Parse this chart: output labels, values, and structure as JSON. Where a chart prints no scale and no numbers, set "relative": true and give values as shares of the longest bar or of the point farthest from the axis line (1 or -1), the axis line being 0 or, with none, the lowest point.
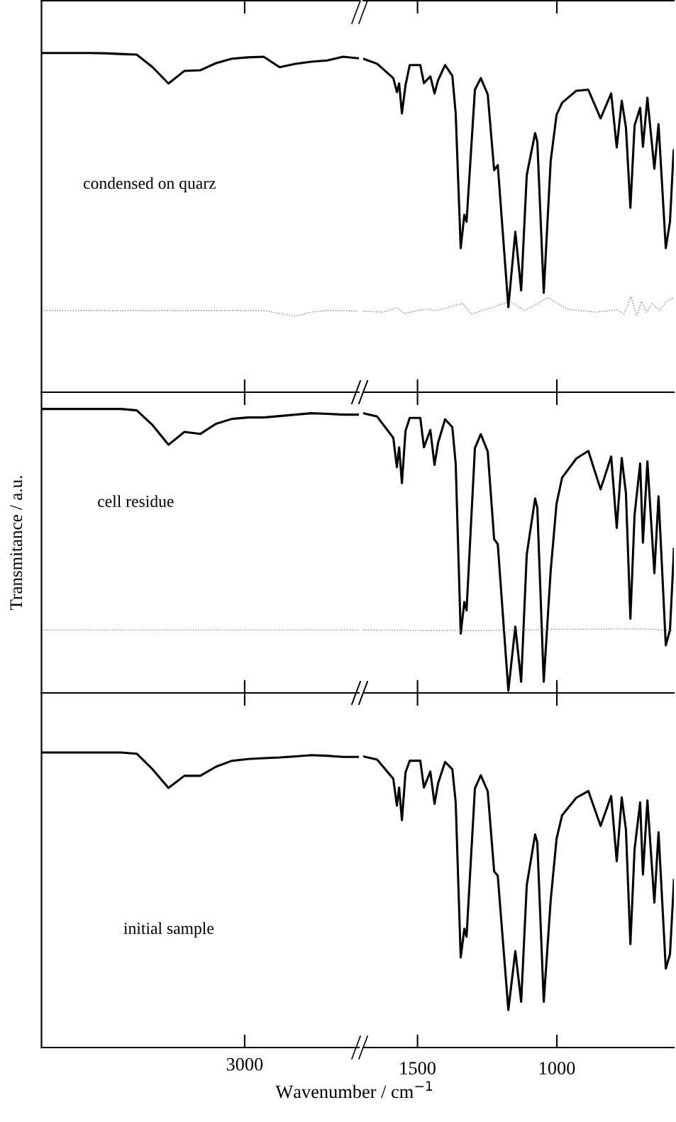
{
  "chart_data": [
    {
      "type": "line",
      "relative": true,
      "categories": [
        null,
        null,
        null,
        null,
        null,
        null,
        null,
        null,
        null,
        null,
        null,
        null,
        null,
        null,
        null,
        null,
        null,
        null,
        null,
        null,
        null
      ],
      "tick_labels": false,
      "annotations": [
        "condensed on quarz"
      ],
      "series": [
        {
          "color": "#000000",
          "line_style": "solid",
          "values": [
            1,
            1,
            1,
            1,
            0.999,
            0.997,
            0.995,
            0.958,
            0.91,
            0.947,
            0.949,
            0.97,
            0.983,
            0.987,
            0.989,
            0.958,
            0.968,
            0.974,
            0.978,
            0.989,
            0.984
          ]
        },
        {
          "color": "#808080",
          "line_style": "dotted",
          "values": [
            0.241,
            0.241,
            0.241,
            0.241,
            0.241,
            0.241,
            0.241,
            0.241,
            0.241,
            0.241,
            0.241,
            0.241,
            0.241,
            0.241,
            0.241,
            0.232,
            0.224,
            0.236,
            0.241,
            0.241,
            0.238
          ]
        }
      ]
    },
    {
      "type": "line",
      "relative": true,
      "xlim": [
        1695,
        580
      ],
      "xticks": [
        1500,
        1000
      ],
      "tick_labels": false,
      "series": [
        {
          "color": "#000000",
          "line_style": "solid",
          "x": [
            1695,
            1645,
            1587,
            1574,
            1566,
            1556,
            1543,
            1528,
            1490,
            1477,
            1454,
            1439,
            1426,
            1401,
            1375,
            1363,
            1345,
            1332,
            1324,
            1294,
            1273,
            1248,
            1225,
            1212,
            1174,
            1149,
            1128,
            1108,
            1078,
            1070,
            1047,
            1022,
            1001,
            981,
            930,
            887,
            843,
            805,
            785,
            767,
            752,
            736,
            721,
            701,
            691,
            675,
            650,
            635,
            609,
            594,
            581,
            580
          ],
          "values": [
            1.0,
            0.985,
            0.942,
            0.9,
            0.926,
            0.836,
            0.921,
            0.981,
            0.981,
            0.927,
            0.947,
            0.896,
            0.936,
            0.981,
            0.949,
            0.836,
            0.432,
            0.532,
            0.511,
            0.907,
            0.942,
            0.893,
            0.666,
            0.681,
            0.255,
            0.481,
            0.305,
            0.651,
            0.777,
            0.751,
            0.298,
            0.694,
            0.832,
            0.868,
            0.904,
            0.907,
            0.821,
            0.896,
            0.734,
            0.874,
            0.794,
            0.553,
            0.8,
            0.853,
            0.736,
            0.883,
            0.67,
            0.804,
            0.432,
            0.511,
            0.723,
            0.726
          ]
        },
        {
          "color": "#808080",
          "line_style": "dotted",
          "x": [
            1695,
            1625,
            1574,
            1548,
            1497,
            1472,
            1434,
            1337,
            1307,
            1167,
            1116,
            1032,
            963,
            861,
            785,
            759,
            734,
            714,
            696,
            678,
            658,
            632,
            607,
            580
          ],
          "values": [
            0.243,
            0.24,
            0.253,
            0.236,
            0.245,
            0.249,
            0.245,
            0.266,
            0.234,
            0.272,
            0.245,
            0.283,
            0.249,
            0.24,
            0.247,
            0.234,
            0.287,
            0.23,
            0.272,
            0.24,
            0.266,
            0.245,
            0.272,
            0.283
          ]
        }
      ]
    },
    {
      "type": "line",
      "relative": true,
      "categories": [
        null,
        null,
        null,
        null,
        null,
        null,
        null,
        null,
        null,
        null,
        null,
        null,
        null,
        null,
        null,
        null,
        null,
        null,
        null,
        null,
        null
      ],
      "tick_labels": false,
      "annotations": [
        "cell residue"
      ],
      "ylabel": "Transmitance / a.u.",
      "series": [
        {
          "color": "#000000",
          "line_style": "solid",
          "values": [
            1,
            1,
            1,
            1,
            1,
            1,
            0.995,
            0.943,
            0.874,
            0.919,
            0.912,
            0.948,
            0.965,
            0.97,
            0.97,
            0.975,
            0.98,
            0.985,
            0.983,
            0.98,
            0.98
          ]
        },
        {
          "color": "#808080",
          "line_style": "dotted",
          "values": [
            0.222,
            0.222,
            0.222,
            0.222,
            0.222,
            0.222,
            0.222,
            0.222,
            0.222,
            0.222,
            0.222,
            0.222,
            0.222,
            0.222,
            0.222,
            0.222,
            0.222,
            0.222,
            0.222,
            0.222,
            0.222
          ]
        }
      ]
    },
    {
      "type": "line",
      "relative": true,
      "xlim": [
        1695,
        580
      ],
      "xticks": [
        1500,
        1000
      ],
      "tick_labels": false,
      "series": [
        {
          "color": "#000000",
          "line_style": "solid",
          "x": [
            1695,
            1645,
            1587,
            1574,
            1566,
            1556,
            1543,
            1528,
            1490,
            1477,
            1454,
            1439,
            1426,
            1401,
            1375,
            1363,
            1345,
            1332,
            1324,
            1294,
            1273,
            1248,
            1225,
            1212,
            1174,
            1149,
            1128,
            1108,
            1078,
            1070,
            1047,
            1022,
            1001,
            981,
            930,
            887,
            843,
            805,
            785,
            767,
            752,
            736,
            721,
            701,
            691,
            675,
            650,
            635,
            609,
            594,
            581,
            580
          ],
          "values": [
            1.0,
            0.988,
            0.912,
            0.807,
            0.878,
            0.75,
            0.937,
            0.983,
            0.983,
            0.878,
            0.94,
            0.815,
            0.895,
            0.978,
            0.95,
            0.82,
            0.212,
            0.325,
            0.295,
            0.875,
            0.925,
            0.863,
            0.55,
            0.532,
            0.008,
            0.237,
            0.04,
            0.495,
            0.695,
            0.662,
            0.04,
            0.438,
            0.677,
            0.77,
            0.838,
            0.865,
            0.728,
            0.845,
            0.59,
            0.84,
            0.713,
            0.265,
            0.637,
            0.82,
            0.537,
            0.828,
            0.428,
            0.703,
            0.17,
            0.225,
            0.487,
            0.515
          ]
        },
        {
          "color": "#808080",
          "line_style": "dotted",
          "x": [
            1695,
            1300,
            1000,
            700,
            580
          ],
          "values": [
            0.225,
            0.223,
            0.227,
            0.229,
            0.223
          ]
        }
      ]
    },
    {
      "type": "line",
      "relative": true,
      "categories": [
        null,
        null,
        null,
        null,
        null,
        null,
        null,
        null,
        null,
        null,
        null,
        null,
        null,
        null,
        null,
        null,
        null,
        null,
        null,
        null,
        null
      ],
      "tick_labels": false,
      "annotations": [
        "initial sample",
        "3000"
      ],
      "xlabel": "Wavenumber / cm$^{−1}$",
      "series": [
        {
          "color": "#000000",
          "line_style": "solid",
          "values": [
            1,
            1,
            1,
            1,
            1,
            1,
            0.996,
            0.943,
            0.88,
            0.921,
            0.921,
            0.952,
            0.972,
            0.978,
            0.981,
            0.983,
            0.987,
            0.991,
            0.989,
            0.985,
            0.985
          ]
        }
      ]
    },
    {
      "type": "line",
      "relative": true,
      "xlim": [
        1695,
        580
      ],
      "xticks": [
        1500,
        1000
      ],
      "tick_labels": "x",
      "series": [
        {
          "color": "#000000",
          "line_style": "solid",
          "x": [
            1695,
            1645,
            1587,
            1574,
            1566,
            1556,
            1543,
            1528,
            1490,
            1477,
            1454,
            1439,
            1426,
            1401,
            1375,
            1363,
            1345,
            1332,
            1324,
            1294,
            1273,
            1248,
            1225,
            1212,
            1174,
            1149,
            1128,
            1108,
            1078,
            1070,
            1047,
            1022,
            1001,
            981,
            930,
            887,
            843,
            805,
            785,
            767,
            752,
            736,
            721,
            701,
            691,
            675,
            650,
            635,
            609,
            594,
            581,
            580
          ],
          "values": [
            1.0,
            0.989,
            0.923,
            0.831,
            0.893,
            0.781,
            0.945,
            0.985,
            0.985,
            0.893,
            0.948,
            0.837,
            0.908,
            0.981,
            0.956,
            0.842,
            0.309,
            0.408,
            0.381,
            0.89,
            0.935,
            0.88,
            0.605,
            0.59,
            0.129,
            0.331,
            0.157,
            0.557,
            0.732,
            0.704,
            0.157,
            0.507,
            0.717,
            0.798,
            0.858,
            0.881,
            0.761,
            0.864,
            0.64,
            0.859,
            0.748,
            0.355,
            0.682,
            0.842,
            0.594,
            0.849,
            0.498,
            0.739,
            0.271,
            0.32,
            0.55,
            0.575
          ]
        }
      ]
    }
  ]
}
